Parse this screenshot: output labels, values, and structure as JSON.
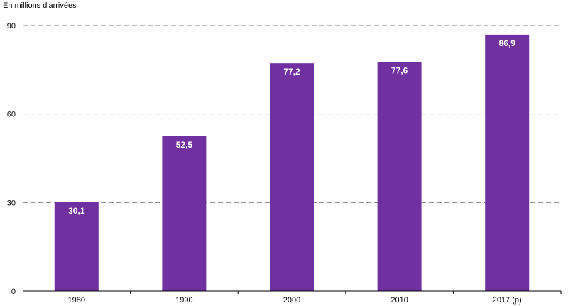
{
  "chart_data": {
    "type": "bar",
    "title": "",
    "ylabel": "En millions d'arrivées",
    "xlabel": "",
    "categories": [
      "1980",
      "1990",
      "2000",
      "2010",
      "2017 (p)"
    ],
    "values": [
      30.1,
      52.5,
      77.2,
      77.6,
      86.9
    ],
    "value_labels": [
      "30,1",
      "52,5",
      "77,2",
      "77,6",
      "86,9"
    ],
    "ylim": [
      0,
      90
    ],
    "yticks": [
      0,
      30,
      60,
      90
    ],
    "grid": true,
    "grid_style": "dashed",
    "legend": "none",
    "bar_color": "#7030A0",
    "label_color": "#ffffff"
  }
}
